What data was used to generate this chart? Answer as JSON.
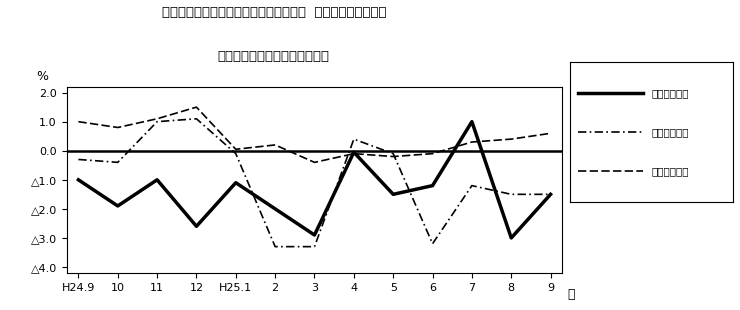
{
  "title_line1": "第４図　賃金、労働時間、常用雇用指数  対前年同月比の推移",
  "title_line2": "（規模５人以上　調査産業計）",
  "xlabel": "月",
  "ylabel": "%",
  "x_labels": [
    "H24.9",
    "10",
    "11",
    "12",
    "H25.1",
    "2",
    "3",
    "4",
    "5",
    "6",
    "7",
    "8",
    "9"
  ],
  "ylim": [
    -4.2,
    2.2
  ],
  "ytick_vals": [
    2.0,
    1.0,
    0.0,
    -1.0,
    -2.0,
    -3.0,
    -4.0
  ],
  "ytick_labels": [
    "2.0",
    "1.0",
    "0.0",
    "△1.0",
    "△2.0",
    "△3.0",
    "△4.0"
  ],
  "genkin": [
    -1.0,
    -1.9,
    -1.0,
    -2.6,
    -1.1,
    -2.0,
    -2.9,
    -0.05,
    -1.5,
    -1.2,
    1.0,
    -3.0,
    -1.5
  ],
  "soujitsu": [
    -0.3,
    -0.4,
    1.0,
    1.1,
    -0.1,
    -3.3,
    -3.3,
    0.4,
    -0.1,
    -3.2,
    -1.2,
    -1.5,
    -1.5
  ],
  "joyou": [
    1.0,
    0.8,
    1.1,
    1.5,
    0.05,
    0.2,
    -0.4,
    -0.1,
    -0.2,
    -0.1,
    0.3,
    0.4,
    0.6
  ],
  "label_genkin": "現金給与総額",
  "label_soujitsu": "総実労働時間",
  "label_joyou": "常用雇用指数",
  "bg_color": "#ffffff"
}
